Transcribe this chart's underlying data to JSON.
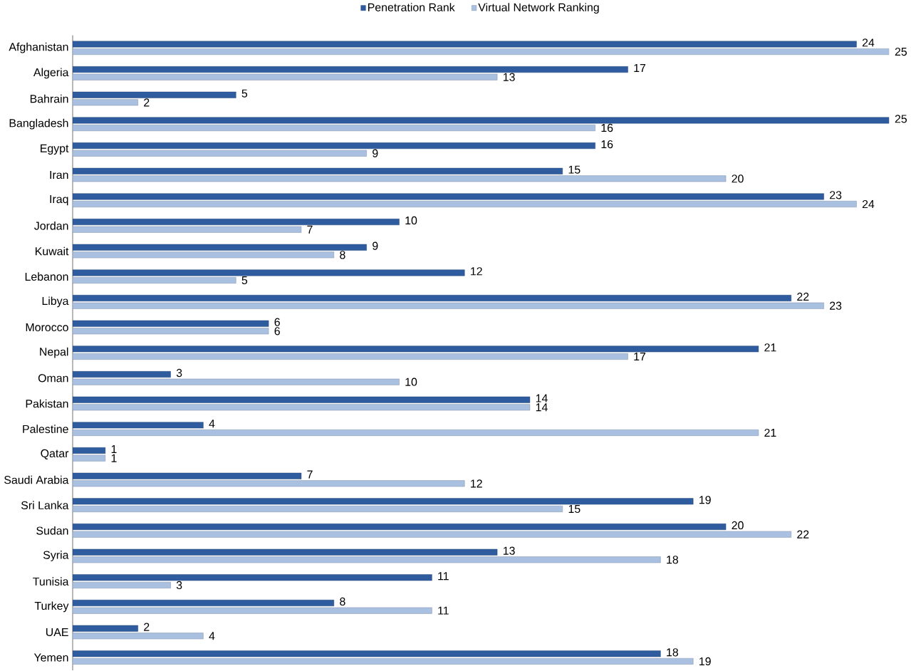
{
  "chart_data": {
    "type": "bar",
    "orientation": "horizontal",
    "legend": "top",
    "data_labels": true,
    "categories": [
      "Afghanistan",
      "Algeria",
      "Bahrain",
      "Bangladesh",
      "Egypt",
      "Iran",
      "Iraq",
      "Jordan",
      "Kuwait",
      "Lebanon",
      "Libya",
      "Morocco",
      "Nepal",
      "Oman",
      "Pakistan",
      "Palestine",
      "Qatar",
      "Saudi Arabia",
      "Sri Lanka",
      "Sudan",
      "Syria",
      "Tunisia",
      "Turkey",
      "UAE",
      "Yemen"
    ],
    "series": [
      {
        "name": "Penetration Rank",
        "color": "#2e5c9e",
        "values": [
          24,
          17,
          5,
          25,
          16,
          15,
          23,
          10,
          9,
          12,
          22,
          6,
          21,
          3,
          14,
          4,
          1,
          7,
          19,
          20,
          13,
          11,
          8,
          2,
          18
        ]
      },
      {
        "name": "Virtual Network Ranking",
        "color": "#a9c0e0",
        "values": [
          25,
          13,
          2,
          16,
          9,
          20,
          24,
          7,
          8,
          5,
          23,
          6,
          17,
          10,
          14,
          21,
          1,
          12,
          15,
          22,
          18,
          3,
          11,
          4,
          19
        ]
      }
    ]
  }
}
